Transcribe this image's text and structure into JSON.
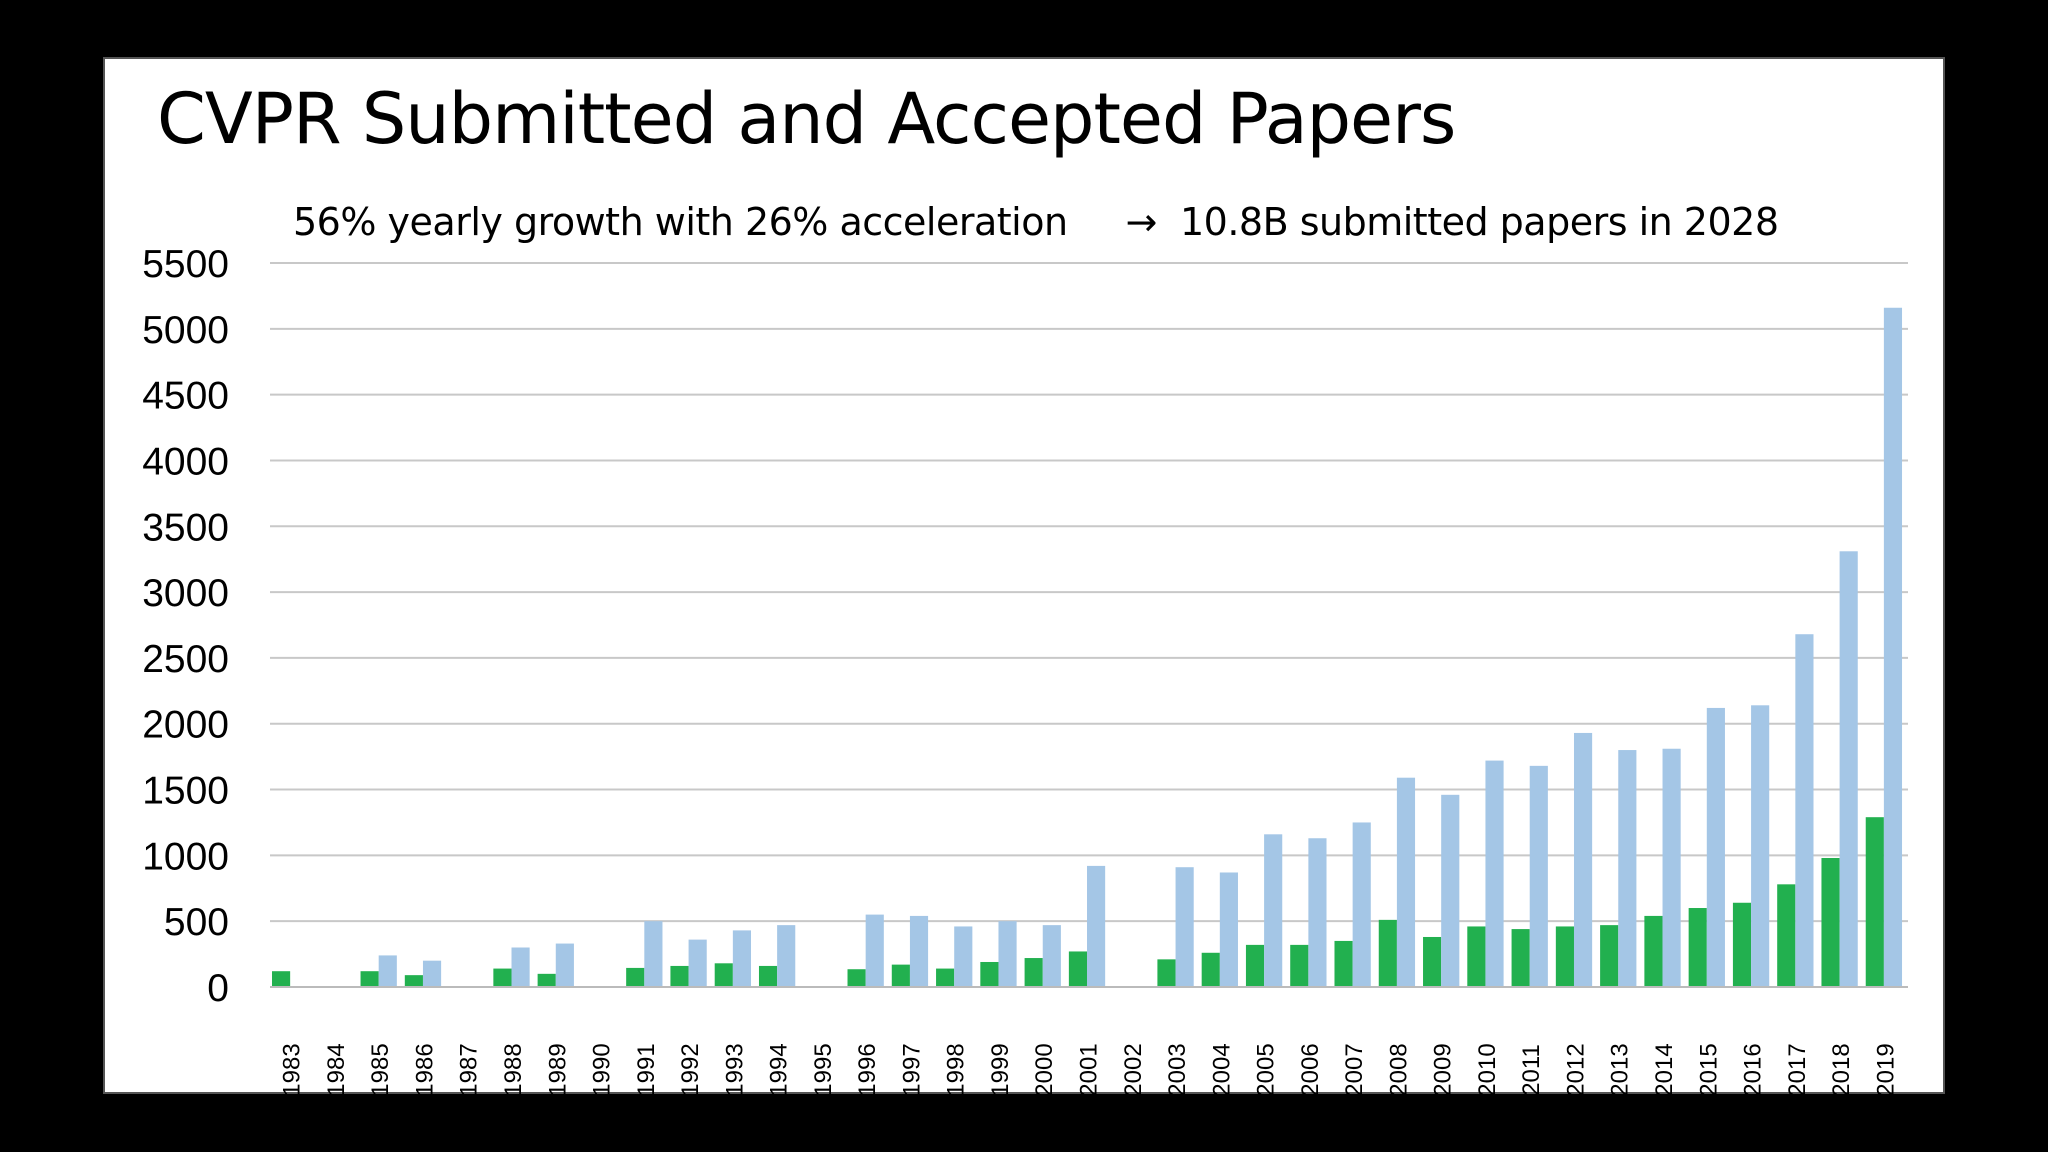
{
  "colors": {
    "submitted": "#a4c6e6",
    "accepted": "#22b04f",
    "grid": "#c8c8c8"
  },
  "chart_data": {
    "type": "bar",
    "title": "CVPR Submitted and Accepted Papers",
    "annotation": "56% yearly growth with 26% acceleration     →  10.8B submitted papers in 2028",
    "xlabel": "",
    "ylabel": "",
    "ylim": [
      0,
      5500
    ],
    "yticks": [
      0,
      500,
      1000,
      1500,
      2000,
      2500,
      3000,
      3500,
      4000,
      4500,
      5000,
      5500
    ],
    "grid": true,
    "legend": "none",
    "categories": [
      "1983",
      "1984",
      "1985",
      "1986",
      "1987",
      "1988",
      "1989",
      "1990",
      "1991",
      "1992",
      "1993",
      "1994",
      "1995",
      "1996",
      "1997",
      "1998",
      "1999",
      "2000",
      "2001",
      "2002",
      "2003",
      "2004",
      "2005",
      "2006",
      "2007",
      "2008",
      "2009",
      "2010",
      "2011",
      "2012",
      "2013",
      "2014",
      "2015",
      "2016",
      "2017",
      "2018",
      "2019"
    ],
    "series": [
      {
        "key": "accepted",
        "values": [
          120,
          0,
          120,
          90,
          0,
          140,
          100,
          0,
          145,
          160,
          180,
          160,
          0,
          135,
          170,
          140,
          190,
          220,
          270,
          0,
          210,
          260,
          320,
          320,
          350,
          510,
          380,
          460,
          440,
          460,
          470,
          540,
          600,
          640,
          780,
          980,
          1290
        ]
      },
      {
        "key": "submitted",
        "values": [
          0,
          0,
          240,
          200,
          0,
          300,
          330,
          0,
          500,
          360,
          430,
          470,
          0,
          550,
          540,
          460,
          500,
          470,
          920,
          0,
          910,
          870,
          1160,
          1130,
          1250,
          1590,
          1460,
          1720,
          1680,
          1930,
          1800,
          1810,
          2120,
          2140,
          2680,
          3310,
          5160
        ]
      }
    ]
  }
}
